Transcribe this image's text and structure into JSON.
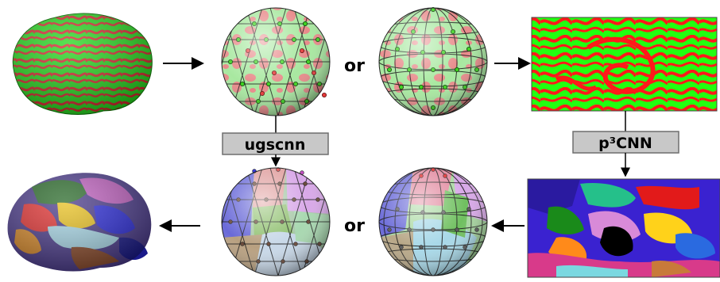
{
  "connectors": {
    "left_or": "or"
  },
  "method_boxes": {
    "left": "ugscnn",
    "right": "p³CNN"
  },
  "colors": {
    "curvature_green": "#22e01a",
    "curvature_red": "#e8262a",
    "box_fill": "#c8c8c8",
    "box_stroke": "#6e6e6e",
    "arrow": "#000000"
  },
  "icons": [
    "brain-curvature",
    "icosahedral-sphere",
    "uv-sphere",
    "equirect-projection-map",
    "brain-parcellation",
    "segmented-icosahedral-sphere",
    "segmented-uv-sphere",
    "segmented-equirect-map"
  ]
}
